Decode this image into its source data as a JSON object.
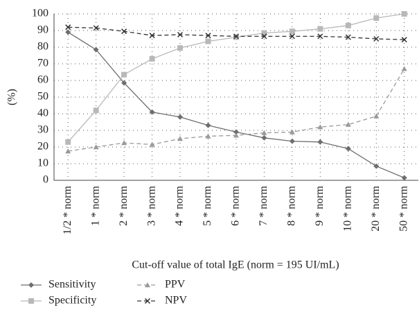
{
  "chart_data": {
    "type": "line",
    "y_label": "(%)",
    "x_label": "Cut-off value of total IgE (norm = 195 UI/mL)",
    "categories": [
      "1/2 * norm",
      "1 * norm",
      "2 * norm",
      "3 * norm",
      "4 * norm",
      "5 * norm",
      "6 * norm",
      "7 * norm",
      "8 * norm",
      "9 * norm",
      "10 * norm",
      "20 * norm",
      "50 * norm"
    ],
    "series": [
      {
        "name": "Sensitivity",
        "color": "#6e6e6e",
        "marker": "diamond",
        "dashed": false,
        "values": [
          89,
          78.5,
          58.5,
          41,
          38,
          33,
          29,
          25.5,
          23.5,
          23,
          19,
          8.5,
          1.5
        ]
      },
      {
        "name": "Specificity",
        "color": "#b8b8b8",
        "marker": "square",
        "dashed": false,
        "values": [
          23,
          42,
          63.5,
          73,
          79.5,
          83.5,
          86,
          88.5,
          89.5,
          91,
          93,
          97.5,
          100
        ]
      },
      {
        "name": "PPV",
        "color": "#9a9a9a",
        "marker": "triangle",
        "dashed": true,
        "values": [
          17.5,
          20,
          22.5,
          21.5,
          25,
          26.5,
          27,
          28.5,
          29,
          32,
          33.5,
          38.5,
          67
        ]
      },
      {
        "name": "NPV",
        "color": "#333333",
        "marker": "x",
        "dashed": true,
        "values": [
          92,
          91.5,
          89.5,
          87,
          87.5,
          87,
          86.5,
          86.5,
          86.5,
          86.5,
          86,
          85,
          84.5
        ]
      }
    ],
    "ylim": [
      0,
      100
    ],
    "yticks": [
      0,
      10,
      20,
      30,
      40,
      50,
      60,
      70,
      80,
      90,
      100
    ],
    "grid": true
  }
}
